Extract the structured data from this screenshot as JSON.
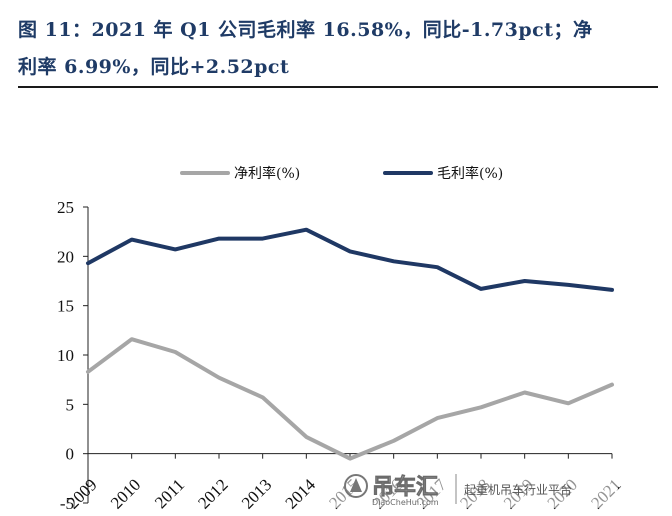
{
  "header": {
    "line1": "图 11：2021 年 Q1 公司毛利率 16.58%，同比-1.73pct；净",
    "line2": "利率 6.99%，同比+2.52pct"
  },
  "watermark": {
    "brand": "吊车汇",
    "site": "DiaoCheHui.com",
    "tagline": "起重机吊车行业平台"
  },
  "chart_data": {
    "type": "line",
    "categories": [
      "2009",
      "2010",
      "2011",
      "2012",
      "2013",
      "2014",
      "2015",
      "2016",
      "2017",
      "2018",
      "2019",
      "2020",
      "2021"
    ],
    "series": [
      {
        "name": "净利率(%)",
        "color": "#a6a6a6",
        "values": [
          8.3,
          11.6,
          10.3,
          7.7,
          5.7,
          1.7,
          -0.5,
          1.3,
          3.6,
          4.7,
          6.2,
          5.1,
          7.0
        ]
      },
      {
        "name": "毛利率(%)",
        "color": "#1f3864",
        "values": [
          19.3,
          21.7,
          20.7,
          21.8,
          21.8,
          22.7,
          20.5,
          19.5,
          18.9,
          16.7,
          17.5,
          17.1,
          16.6
        ]
      }
    ],
    "y_ticks": [
      "25",
      "20",
      "15",
      "10",
      "5",
      "0",
      "-5"
    ],
    "ylim": [
      -5,
      25
    ],
    "legend": "top-center",
    "grid": false
  }
}
